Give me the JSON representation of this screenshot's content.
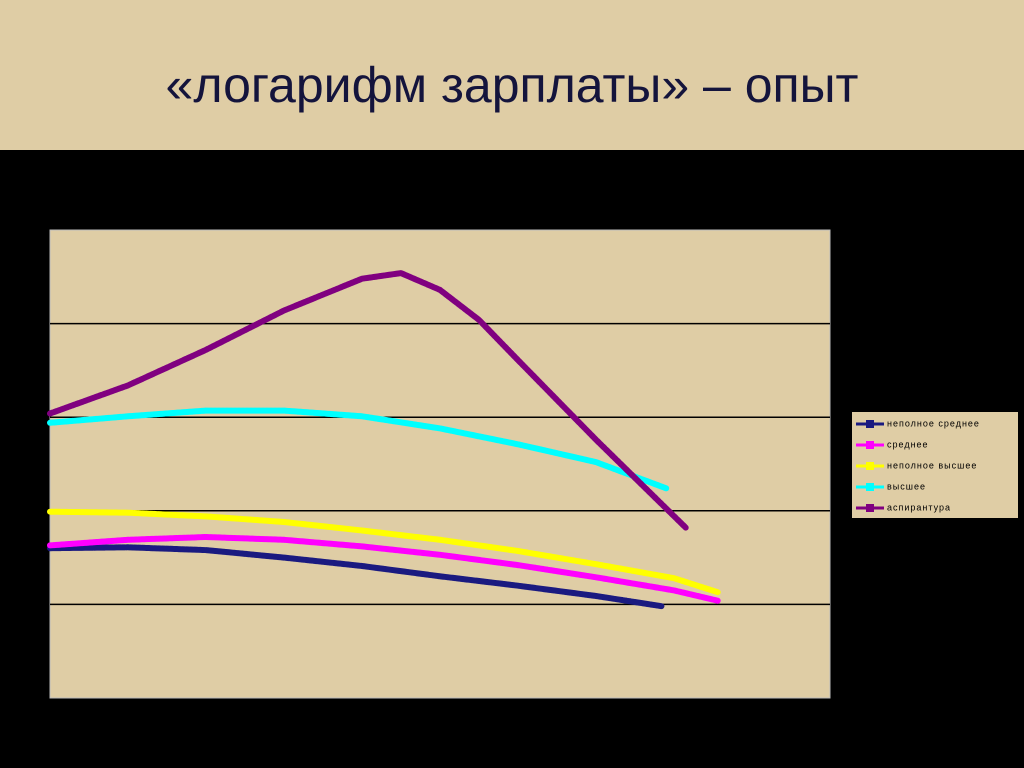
{
  "chart_data": {
    "type": "line",
    "title": "«логарифм зарплаты» – опыт",
    "xlim": [
      0,
      100
    ],
    "ylim": [
      0,
      5
    ],
    "grid_lines": [
      1,
      2,
      3,
      4
    ],
    "series": [
      {
        "name": "неполное среднее",
        "color": "#1a1a80",
        "x": [
          0,
          10,
          20,
          30,
          40,
          50,
          60,
          70,
          78.5
        ],
        "values": [
          1.6,
          1.61,
          1.58,
          1.5,
          1.41,
          1.3,
          1.2,
          1.09,
          0.98
        ]
      },
      {
        "name": "среднее",
        "color": "#ff00ff",
        "x": [
          0,
          10,
          20,
          30,
          40,
          50,
          60,
          70,
          80,
          85.6
        ],
        "values": [
          1.63,
          1.69,
          1.72,
          1.69,
          1.62,
          1.53,
          1.42,
          1.29,
          1.15,
          1.04
        ]
      },
      {
        "name": "неполное высшее",
        "color": "#ffff00",
        "x": [
          0,
          10,
          20,
          30,
          40,
          50,
          60,
          70,
          80,
          85.6
        ],
        "values": [
          1.99,
          1.98,
          1.94,
          1.88,
          1.79,
          1.69,
          1.57,
          1.43,
          1.28,
          1.13
        ]
      },
      {
        "name": "высшее",
        "color": "#00ffff",
        "x": [
          0,
          10,
          20,
          30,
          40,
          50,
          60,
          70,
          79
        ],
        "values": [
          2.94,
          3.01,
          3.07,
          3.07,
          3.01,
          2.88,
          2.71,
          2.52,
          2.24
        ]
      },
      {
        "name": "аспирантура",
        "color": "#800080",
        "x": [
          0,
          10,
          20,
          30,
          40,
          45,
          50,
          55,
          60,
          70,
          81.5
        ],
        "values": [
          3.04,
          3.34,
          3.72,
          4.14,
          4.48,
          4.54,
          4.36,
          4.04,
          3.61,
          2.76,
          1.82
        ]
      }
    ]
  }
}
